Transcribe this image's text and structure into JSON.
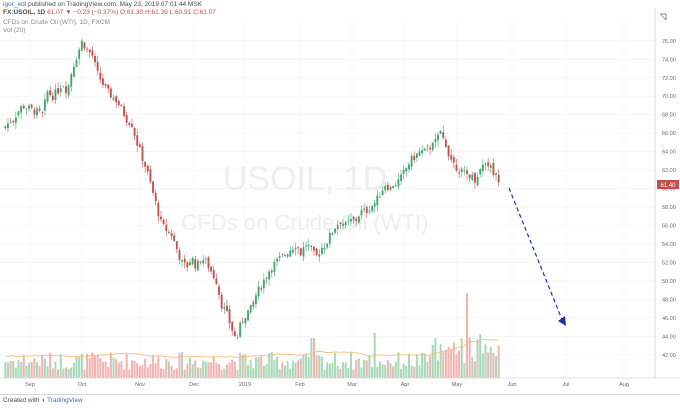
{
  "header": {
    "author": "igor_edl",
    "published": "published on TradingView.com, May 23, 2019 07:01:44 MSK",
    "symbol": "FX:USOIL, 1D",
    "last": "61.07",
    "change": "−0.23 (−0.37%)",
    "o": "O:61.30",
    "h": "H:61.39",
    "l": "L:60.91",
    "c": "C:61.07",
    "title": "CFDs on Crude Oil (WTI), 1D, FXCM",
    "volume_label": "Vol (20)"
  },
  "watermark": {
    "symbol": "USOIL, 1D",
    "name": "CFDs on Crude Oil (WTI)"
  },
  "price_badge": "61.40",
  "footer": {
    "text": "Created with",
    "brand": "TradingView"
  },
  "colors": {
    "up": "#3fa66e",
    "down": "#c0504d",
    "arrow": "#1f2fa8",
    "vol_up": "#a8d8b8",
    "vol_down": "#f0b3b0",
    "ma": "#f5b96b"
  },
  "chart_data": {
    "type": "candlestick",
    "y_ticks": [
      "76.00",
      "74.00",
      "72.00",
      "70.00",
      "68.00",
      "66.00",
      "64.00",
      "62.00",
      "60.00",
      "58.00",
      "56.00",
      "54.00",
      "52.00",
      "50.00",
      "48.00",
      "46.00",
      "44.00",
      "42.00"
    ],
    "x_ticks": [
      "Sep",
      "Oct",
      "Nov",
      "Dec",
      "2019",
      "Feb",
      "Mar",
      "Apr",
      "May",
      "Jun",
      "Jul",
      "Aug"
    ],
    "ylim": [
      41,
      77.5
    ],
    "close_path": [
      [
        0,
        66.5
      ],
      [
        10,
        67.5
      ],
      [
        20,
        69.0
      ],
      [
        30,
        68.5
      ],
      [
        40,
        68.0
      ],
      [
        45,
        70.5
      ],
      [
        50,
        70.0
      ],
      [
        55,
        70.5
      ],
      [
        60,
        71.5
      ],
      [
        65,
        70.5
      ],
      [
        70,
        73.0
      ],
      [
        75,
        74.5
      ],
      [
        80,
        76.0
      ],
      [
        85,
        75.0
      ],
      [
        90,
        74.5
      ],
      [
        95,
        72.5
      ],
      [
        100,
        71.5
      ],
      [
        105,
        70.5
      ],
      [
        110,
        70.0
      ],
      [
        115,
        69.5
      ],
      [
        120,
        68.5
      ],
      [
        125,
        67.5
      ],
      [
        130,
        67.0
      ],
      [
        135,
        65.0
      ],
      [
        140,
        63.5
      ],
      [
        145,
        62.0
      ],
      [
        150,
        60.0
      ],
      [
        155,
        58.0
      ],
      [
        160,
        56.0
      ],
      [
        165,
        55.5
      ],
      [
        170,
        55.0
      ],
      [
        175,
        53.5
      ],
      [
        180,
        52.0
      ],
      [
        185,
        51.5
      ],
      [
        190,
        52.5
      ],
      [
        195,
        51.5
      ],
      [
        200,
        52.5
      ],
      [
        205,
        52.0
      ],
      [
        210,
        51.0
      ],
      [
        215,
        50.0
      ],
      [
        220,
        47.5
      ],
      [
        225,
        46.5
      ],
      [
        230,
        45.0
      ],
      [
        235,
        43.5
      ],
      [
        240,
        45.5
      ],
      [
        245,
        46.5
      ],
      [
        250,
        47.0
      ],
      [
        255,
        48.5
      ],
      [
        260,
        49.5
      ],
      [
        265,
        50.5
      ],
      [
        270,
        51.5
      ],
      [
        275,
        52.0
      ],
      [
        280,
        52.5
      ],
      [
        285,
        53.0
      ],
      [
        290,
        53.5
      ],
      [
        295,
        54.0
      ],
      [
        300,
        53.0
      ],
      [
        305,
        54.0
      ],
      [
        310,
        53.5
      ],
      [
        315,
        52.5
      ],
      [
        320,
        53.5
      ],
      [
        325,
        54.0
      ],
      [
        330,
        55.0
      ],
      [
        335,
        56.0
      ],
      [
        340,
        56.5
      ],
      [
        345,
        56.0
      ],
      [
        350,
        56.5
      ],
      [
        355,
        56.5
      ],
      [
        360,
        57.5
      ],
      [
        365,
        57.5
      ],
      [
        370,
        58.0
      ],
      [
        375,
        58.5
      ],
      [
        380,
        59.5
      ],
      [
        385,
        60.5
      ],
      [
        390,
        60.0
      ],
      [
        395,
        60.5
      ],
      [
        400,
        61.0
      ],
      [
        405,
        62.0
      ],
      [
        410,
        63.0
      ],
      [
        415,
        63.5
      ],
      [
        420,
        64.0
      ],
      [
        425,
        64.0
      ],
      [
        430,
        64.5
      ],
      [
        435,
        65.0
      ],
      [
        440,
        66.0
      ],
      [
        445,
        65.0
      ],
      [
        450,
        63.5
      ],
      [
        455,
        62.5
      ],
      [
        460,
        62.0
      ],
      [
        465,
        61.5
      ],
      [
        470,
        61.5
      ],
      [
        475,
        61.0
      ],
      [
        480,
        62.0
      ],
      [
        485,
        63.0
      ],
      [
        490,
        62.5
      ],
      [
        495,
        61.5
      ],
      [
        499,
        61.1
      ]
    ],
    "candle_count": 188,
    "volume_note": "Vol (20) histogram with moving average line",
    "projection": {
      "from": [
        "2019-05-23",
        61.4
      ],
      "to": [
        "2019-07-01",
        46.2
      ]
    }
  }
}
